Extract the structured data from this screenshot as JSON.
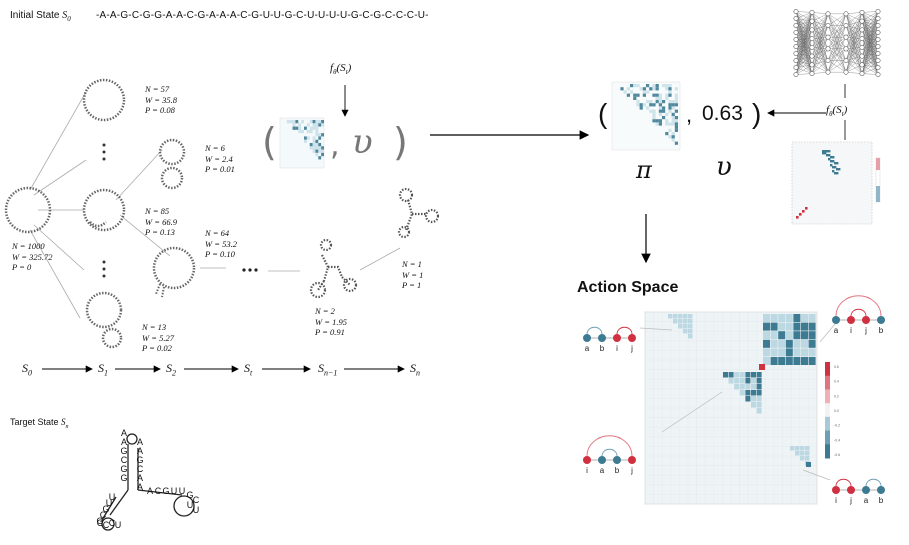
{
  "header": {
    "initial_label": "Initial State",
    "initial_sub": "S",
    "initial_sub_idx": "0",
    "sequence": "-A-A-G-C-G-G-A-A-C-G-A-A-A-C-G-U-U-G-C-U-U-U-U-G-C-G-C-C-C-U-"
  },
  "tree": {
    "root": {
      "n": "N = 1000",
      "w": "W = 325.72",
      "p": "P = 0"
    },
    "nodes": [
      {
        "n": "N = 57",
        "w": "W = 35.8",
        "p": "P = 0.08"
      },
      {
        "n": "N = 85",
        "w": "W = 66.9",
        "p": "P = 0.13"
      },
      {
        "n": "N = 13",
        "w": "W = 5.27",
        "p": "P = 0.02"
      },
      {
        "n": "N = 6",
        "w": "W = 2.4",
        "p": "P = 0.01"
      },
      {
        "n": "N = 64",
        "w": "W = 53.2",
        "p": "P = 0.10"
      },
      {
        "n": "N = 2",
        "w": "W = 1.95",
        "p": "P = 0.91"
      },
      {
        "n": "N = 1",
        "w": "W = 1",
        "p": "P = 1"
      }
    ],
    "ellipsis": "• • •"
  },
  "formula": {
    "f_label": "f",
    "f_sub": "θ",
    "f_arg": "(S",
    "f_arg_sub": "t",
    "f_close": ")",
    "left_paren": "(",
    "comma": ",",
    "v_symbol": "υ",
    "right_paren": ")"
  },
  "output": {
    "left_paren": "(",
    "comma": ",",
    "value": "0.63",
    "right_paren": ")",
    "pi_label": "π",
    "v_label": "υ"
  },
  "timeline": {
    "labels": [
      {
        "base": "S",
        "sub": "0"
      },
      {
        "base": "S",
        "sub": "1"
      },
      {
        "base": "S",
        "sub": "2"
      },
      {
        "base": "S",
        "sub": "t"
      },
      {
        "base": "S",
        "sub": "n−1"
      },
      {
        "base": "S",
        "sub": "n"
      }
    ]
  },
  "target": {
    "label": "Target State",
    "sub_base": "S",
    "sub": "n"
  },
  "action_space": {
    "title": "Action Space",
    "pairs": [
      {
        "labels": [
          "a",
          "b",
          "i",
          "j"
        ]
      },
      {
        "labels": [
          "a",
          "i",
          "j",
          "b"
        ]
      },
      {
        "labels": [
          "i",
          "a",
          "b",
          "j"
        ]
      },
      {
        "labels": [
          "i",
          "j",
          "a",
          "b"
        ]
      }
    ],
    "colorbar_ticks": [
      "0.6",
      "0.4",
      "0.2",
      "0.0",
      "-0.2",
      "-0.4",
      "-0.6"
    ]
  },
  "colors": {
    "blue": "#3d7b92",
    "light_blue": "#bcd8e3",
    "red": "#d03040",
    "node": "#555555"
  }
}
